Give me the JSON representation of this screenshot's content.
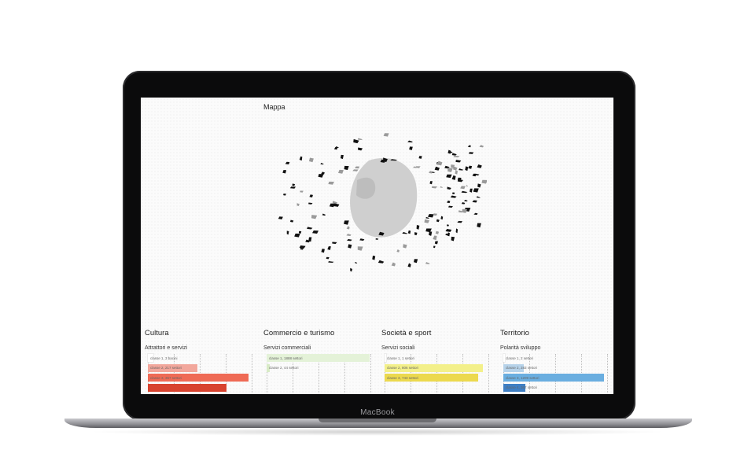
{
  "device": {
    "brand": "MacBook"
  },
  "map": {
    "title": "Mappa"
  },
  "sections": [
    {
      "title": "Cultura",
      "subtitle": "Attrattori e servizi",
      "bars": [
        {
          "label": "classe 1, 3 bacini",
          "value": 0.05,
          "color": "#ffffff"
        },
        {
          "label": "classe 2, 217 settori",
          "value": 0.48,
          "color": "#f2a79c"
        },
        {
          "label": "classe 3, 367 settori",
          "value": 0.97,
          "color": "#ef6a55"
        },
        {
          "label": "",
          "value": 0.76,
          "color": "#d8432f"
        }
      ]
    },
    {
      "title": "Commercio e turismo",
      "subtitle": "Servizi commerciali",
      "bars": [
        {
          "label": "classe 1, 1888 settori",
          "value": 0.99,
          "color": "#e4f2d8"
        },
        {
          "label": "classe 2, 44 settori",
          "value": 0.03,
          "color": "#d8ebc6"
        }
      ]
    },
    {
      "title": "Società e sport",
      "subtitle": "Servizi sociali",
      "bars": [
        {
          "label": "classe 1, 1 settori",
          "value": 0.01,
          "color": "#ffffff"
        },
        {
          "label": "classe 2, 806 settori",
          "value": 0.95,
          "color": "#f3f08a"
        },
        {
          "label": "classe 3, 743 settori",
          "value": 0.9,
          "color": "#ecd94e"
        }
      ]
    },
    {
      "title": "Territorio",
      "subtitle": "Polarità sviluppo",
      "bars": [
        {
          "label": "classe 1, 2 settori",
          "value": 0.01,
          "color": "#ffffff"
        },
        {
          "label": "classe 2, 283 settori",
          "value": 0.2,
          "color": "#b7d3ea"
        },
        {
          "label": "classe 3, 1209 settori",
          "value": 0.97,
          "color": "#6aaee0"
        },
        {
          "label": "classe 4, 367 settori",
          "value": 0.21,
          "color": "#3f7fc4"
        }
      ]
    }
  ]
}
